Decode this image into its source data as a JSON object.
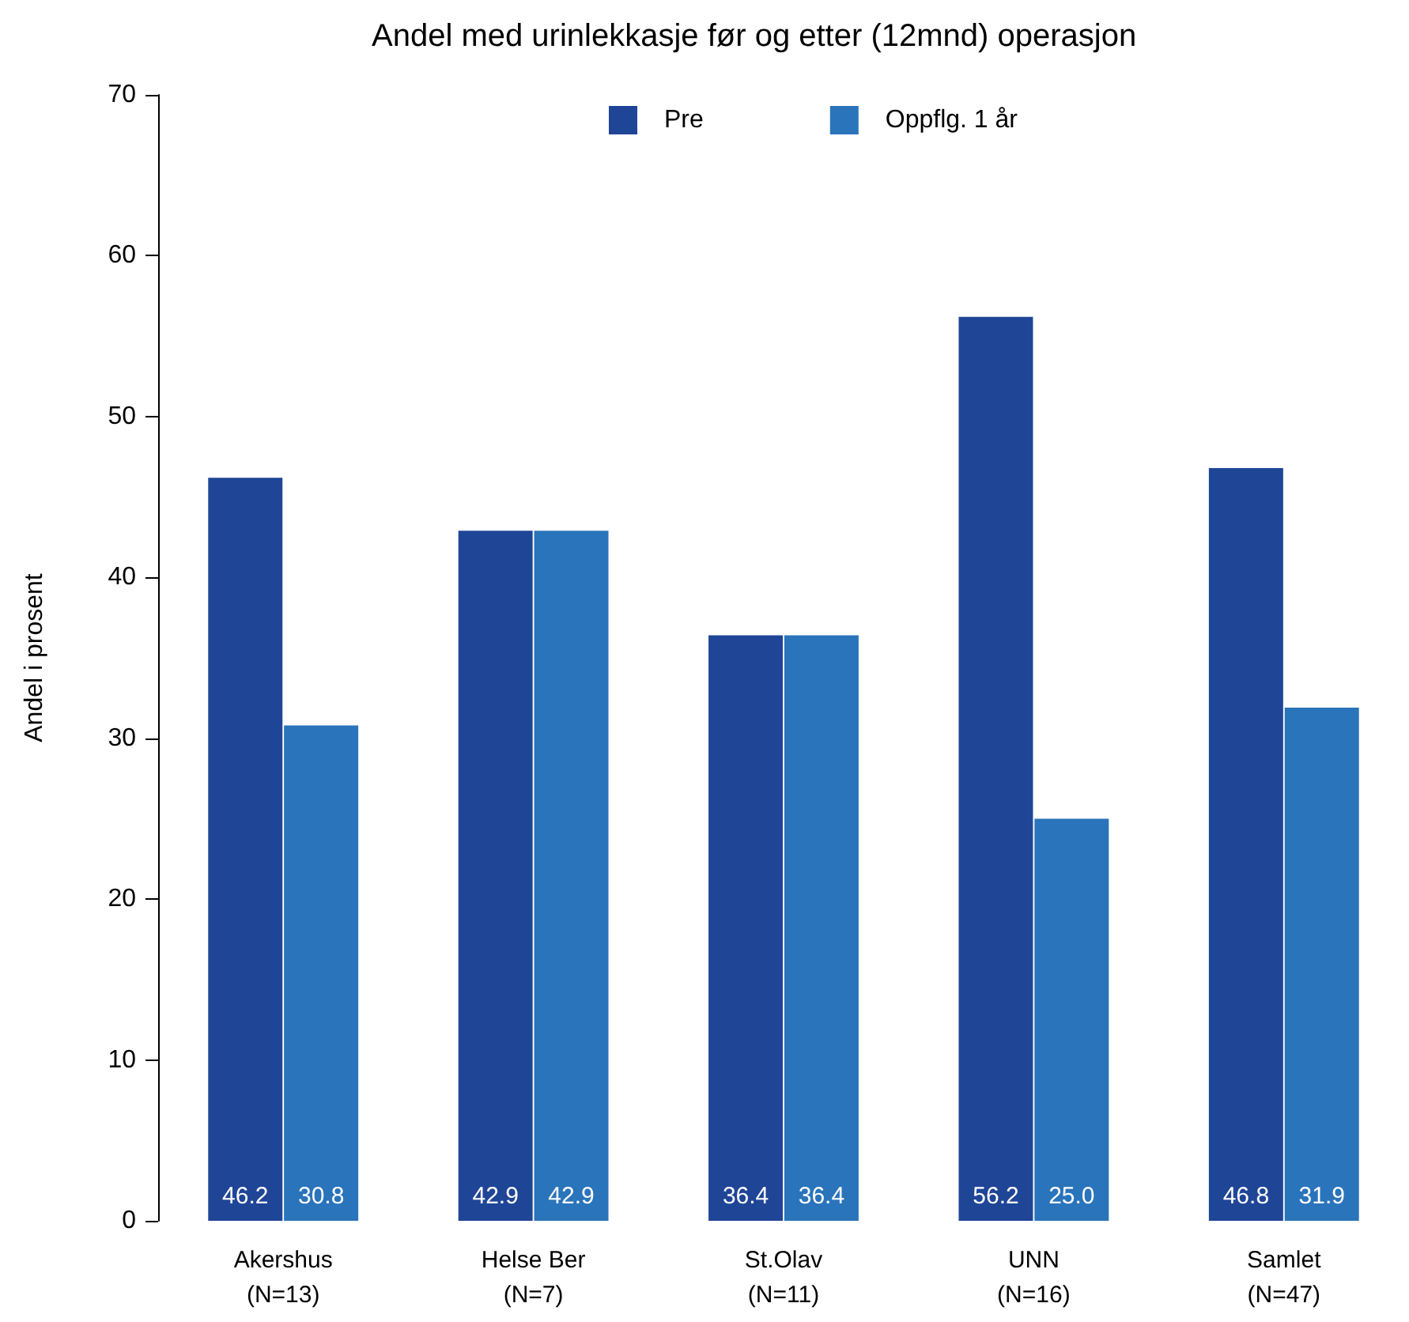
{
  "chart_data": {
    "type": "bar",
    "title": "Andel med urinlekkasje før og etter (12mnd) operasjon",
    "ylabel": "Andel i prosent",
    "categories": [
      "Akershus\n(N=13)",
      "Helse Ber\n(N=7)",
      "St.Olav\n(N=11)",
      "UNN\n(N=16)",
      "Samlet\n(N=47)"
    ],
    "series": [
      {
        "name": "Pre",
        "color": "#1f4597",
        "values": [
          46.2,
          42.9,
          36.4,
          56.2,
          46.8
        ],
        "value_labels": [
          "46.2",
          "42.9",
          "36.4",
          "56.2",
          "46.8"
        ]
      },
      {
        "name": "Oppflg. 1 år",
        "color": "#2a74bb",
        "values": [
          30.8,
          42.9,
          36.4,
          25.0,
          31.9
        ],
        "value_labels": [
          "30.8",
          "42.9",
          "36.4",
          "25.0",
          "31.9"
        ]
      }
    ],
    "ylim": [
      0,
      70
    ],
    "yticks": [
      0,
      10,
      20,
      30,
      40,
      50,
      60,
      70
    ],
    "grid": false,
    "legend": "top"
  }
}
